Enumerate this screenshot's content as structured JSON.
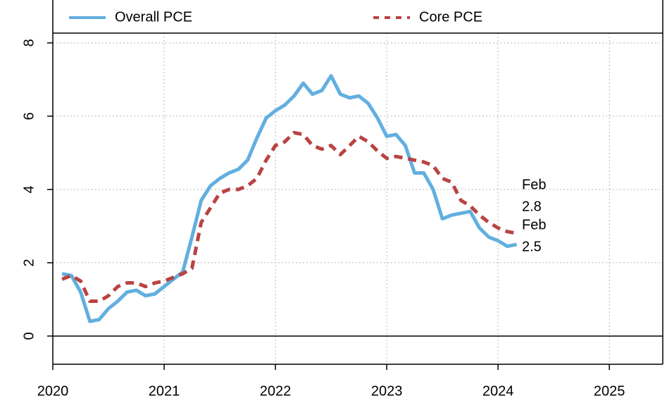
{
  "chart_data": {
    "type": "line",
    "x": [
      2020.083,
      2020.167,
      2020.25,
      2020.333,
      2020.417,
      2020.5,
      2020.583,
      2020.667,
      2020.75,
      2020.833,
      2020.917,
      2021.0,
      2021.083,
      2021.167,
      2021.25,
      2021.333,
      2021.417,
      2021.5,
      2021.583,
      2021.667,
      2021.75,
      2021.833,
      2021.917,
      2022.0,
      2022.083,
      2022.167,
      2022.25,
      2022.333,
      2022.417,
      2022.5,
      2022.583,
      2022.667,
      2022.75,
      2022.833,
      2022.917,
      2023.0,
      2023.083,
      2023.167,
      2023.25,
      2023.333,
      2023.417,
      2023.5,
      2023.583,
      2023.667,
      2023.75,
      2023.833,
      2023.917,
      2024.0,
      2024.083,
      2024.167
    ],
    "series": [
      {
        "name": "Overall PCE",
        "color": "#62afe0",
        "dash": false,
        "values": [
          1.7,
          1.65,
          1.2,
          0.4,
          0.45,
          0.75,
          0.95,
          1.2,
          1.25,
          1.1,
          1.15,
          1.35,
          1.55,
          1.75,
          2.7,
          3.7,
          4.1,
          4.3,
          4.45,
          4.55,
          4.8,
          5.4,
          5.95,
          6.15,
          6.3,
          6.55,
          6.9,
          6.6,
          6.7,
          7.1,
          6.6,
          6.5,
          6.55,
          6.35,
          5.95,
          5.45,
          5.5,
          5.2,
          4.45,
          4.45,
          4.0,
          3.2,
          3.3,
          3.35,
          3.4,
          2.95,
          2.7,
          2.6,
          2.45,
          2.5
        ]
      },
      {
        "name": "Core PCE",
        "color": "#b94343",
        "dash": true,
        "values": [
          1.55,
          1.65,
          1.5,
          0.95,
          0.95,
          1.1,
          1.35,
          1.45,
          1.45,
          1.35,
          1.45,
          1.5,
          1.6,
          1.7,
          1.85,
          3.1,
          3.5,
          3.9,
          4.0,
          4.0,
          4.1,
          4.3,
          4.8,
          5.2,
          5.3,
          5.55,
          5.5,
          5.2,
          5.1,
          5.2,
          4.95,
          5.2,
          5.45,
          5.3,
          5.05,
          4.85,
          4.9,
          4.85,
          4.8,
          4.75,
          4.65,
          4.3,
          4.2,
          3.7,
          3.55,
          3.3,
          3.1,
          2.95,
          2.85,
          2.8
        ]
      }
    ],
    "annotations": [
      {
        "series": 1,
        "lines": [
          "Feb",
          "2.8"
        ]
      },
      {
        "series": 0,
        "lines": [
          "Feb",
          "2.5"
        ]
      }
    ],
    "xlim": [
      2020,
      2025.48
    ],
    "xticks": [
      2020,
      2021,
      2022,
      2023,
      2024,
      2025
    ],
    "ylim": [
      -0.77,
      9.17
    ],
    "yticks": [
      0,
      2,
      4,
      6,
      8
    ],
    "grid": true,
    "legend": "top"
  }
}
